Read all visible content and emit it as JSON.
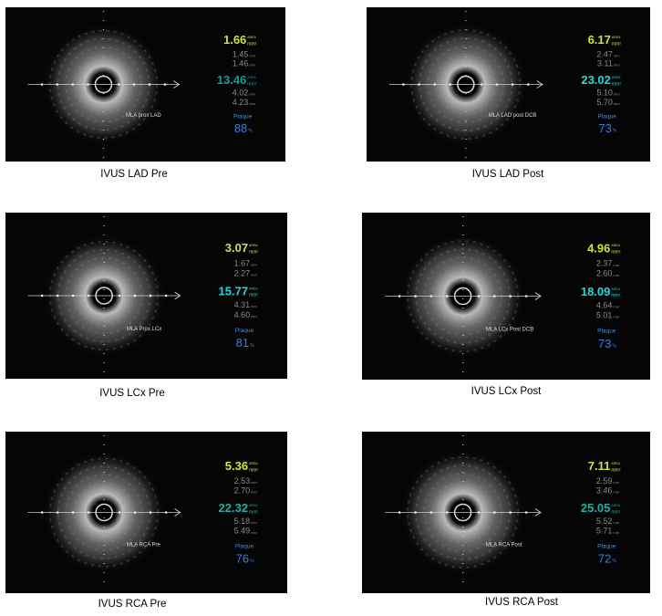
{
  "units": {
    "area_tag": "AREA",
    "area": "mm²",
    "length": "mm",
    "percent": "%"
  },
  "plaque_label": "Plaque",
  "panels": [
    {
      "caption": "IVUS LAD Pre",
      "image_label": "MLA prox LAD",
      "lumen": {
        "area": "1.66",
        "d1": "1.45",
        "d2": "1.46"
      },
      "vessel": {
        "area": "13.46",
        "d1": "4.02",
        "d2": "4.23"
      },
      "plaque": "88"
    },
    {
      "caption": "IVUS LAD Post",
      "image_label": "MLA LAD post DCB",
      "lumen": {
        "area": "6.17",
        "d1": "2.47",
        "d2": "3.11"
      },
      "vessel": {
        "area": "23.02",
        "d1": "5.10",
        "d2": "5.70"
      },
      "plaque": "73"
    },
    {
      "caption": "IVUS LCx Pre",
      "image_label": "MLA Prox LCx",
      "lumen": {
        "area": "3.07",
        "d1": "1.67",
        "d2": "2.27"
      },
      "vessel": {
        "area": "15.77",
        "d1": "4.31",
        "d2": "4.60"
      },
      "plaque": "81"
    },
    {
      "caption": "IVUS LCx Post",
      "image_label": "MLA LCx Post DCB",
      "lumen": {
        "area": "4.96",
        "d1": "2.37",
        "d2": "2.60"
      },
      "vessel": {
        "area": "18.09",
        "d1": "4.64",
        "d2": "5.01"
      },
      "plaque": "73"
    },
    {
      "caption": "IVUS RCA Pre",
      "image_label": "MLA RCA Pre",
      "lumen": {
        "area": "5.36",
        "d1": "2.53",
        "d2": "2.70"
      },
      "vessel": {
        "area": "22.32",
        "d1": "5.18",
        "d2": "5.49"
      },
      "plaque": "76"
    },
    {
      "caption": "IVUS RCA Post",
      "image_label": "MLA RCA Post",
      "lumen": {
        "area": "7.11",
        "d1": "2.59",
        "d2": "3.46"
      },
      "vessel": {
        "area": "25.05",
        "d1": "5.52",
        "d2": "5.71"
      },
      "plaque": "72"
    }
  ]
}
